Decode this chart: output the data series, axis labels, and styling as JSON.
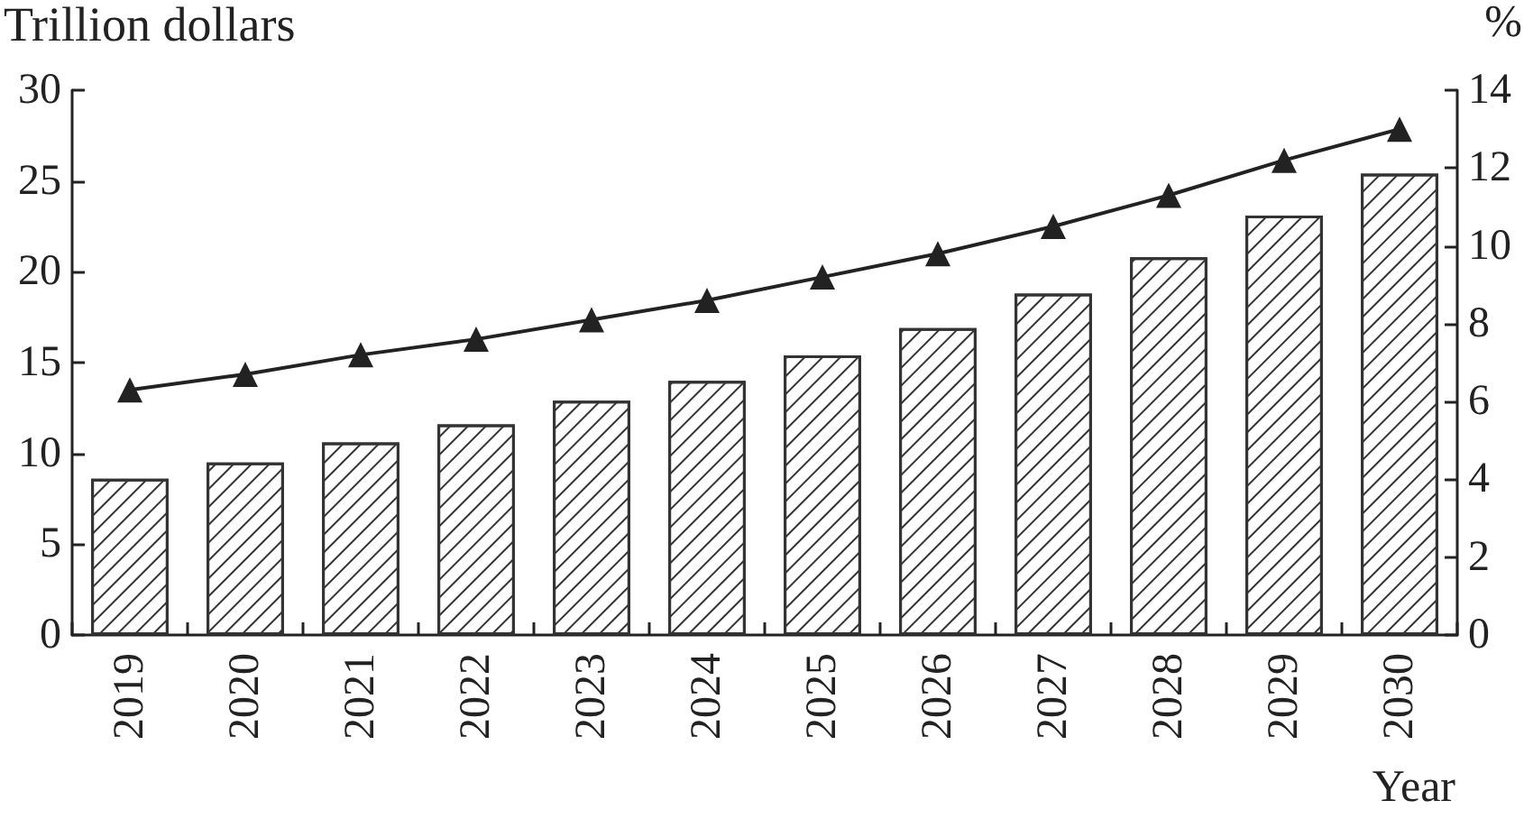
{
  "chart_data": {
    "type": "bar",
    "ylabel": "Trillion dollars",
    "y2label": "%",
    "xlabel": "Year",
    "categories": [
      "2019",
      "2020",
      "2021",
      "2022",
      "2023",
      "2024",
      "2025",
      "2026",
      "2027",
      "2028",
      "2029",
      "2030"
    ],
    "series": [
      {
        "color": "#333333",
        "values": [
          8.6,
          9.5,
          10.6,
          11.6,
          12.9,
          14.0,
          15.4,
          16.9,
          18.8,
          20.8,
          23.1,
          25.4
        ]
      },
      {
        "type": "line",
        "axis": "y2",
        "color": "#222222",
        "values": [
          6.3,
          6.7,
          7.2,
          7.6,
          8.1,
          8.6,
          9.2,
          9.8,
          10.5,
          11.3,
          12.2,
          13.0
        ]
      }
    ],
    "ylim": [
      0,
      30
    ],
    "yticks": [
      0,
      5,
      10,
      15,
      20,
      25,
      30
    ],
    "y2lim": [
      0,
      14
    ],
    "y2ticks": [
      0,
      2,
      4,
      6,
      8,
      10,
      12,
      14
    ],
    "marker": "triangle",
    "line_style": "solid"
  }
}
